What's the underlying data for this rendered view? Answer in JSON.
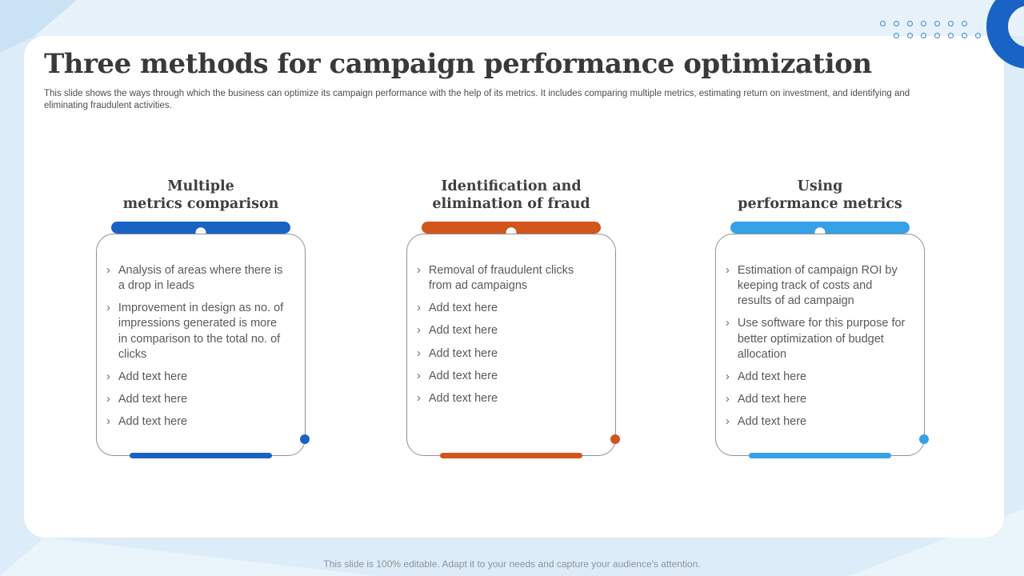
{
  "bullet_glyph": "›",
  "colors": {
    "accent_blue": "#1963c4",
    "accent_orange": "#d2551b",
    "accent_sky": "#36a1e6"
  },
  "header": {
    "title": "Three methods for campaign performance optimization",
    "subtitle": "This slide shows the ways through which the business can optimize its campaign performance with the help of its metrics. It includes comparing multiple metrics, estimating return on investment, and identifying and eliminating fraudulent activities."
  },
  "cards": [
    {
      "title": "Multiple\nmetrics comparison",
      "items": [
        "Analysis of areas where there is a drop in leads",
        "Improvement in design as no. of impressions generated is more in comparison to the total no. of clicks",
        "Add text here",
        "Add text here",
        "Add text here"
      ]
    },
    {
      "title": "Identification and\nelimination of fraud",
      "items": [
        "Removal of fraudulent clicks from ad campaigns",
        "Add text here",
        "Add text here",
        "Add text here",
        "Add text here",
        "Add text here"
      ]
    },
    {
      "title": "Using\nperformance metrics",
      "items": [
        "Estimation of campaign ROI by keeping track of costs and results of ad campaign",
        "Use software for this purpose for better optimization of budget allocation",
        "Add text here",
        "Add text here",
        "Add text here"
      ]
    }
  ],
  "footer": {
    "note": "This slide is 100% editable. Adapt it to your needs and capture your audience's attention."
  }
}
